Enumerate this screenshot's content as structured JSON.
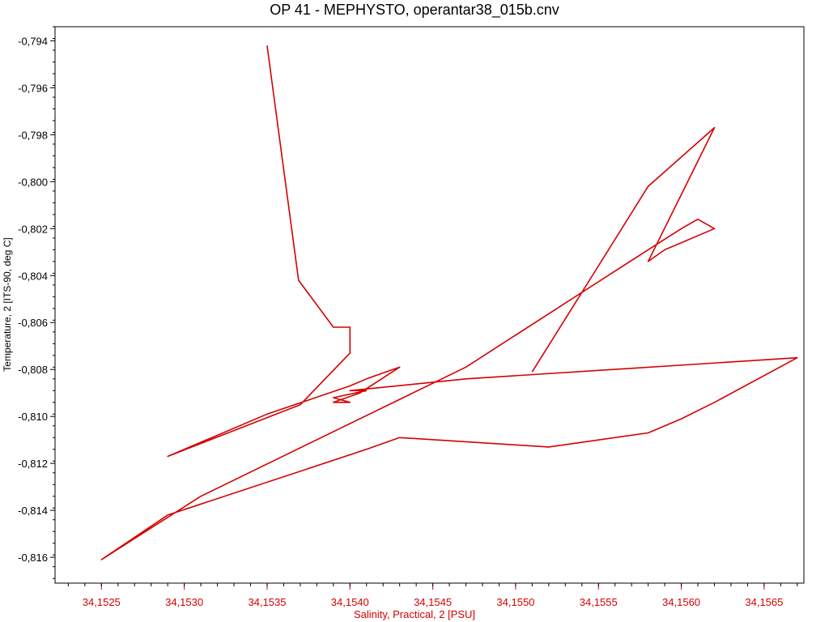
{
  "chart_data": {
    "type": "line",
    "title": "OP 41 - MEPHYSTO, operantar38_015b.cnv",
    "xlabel": "Salinity, Practical, 2 [PSU]",
    "ylabel": "Temperature, 2 [ITS-90, deg C]",
    "xlim": [
      34.15222,
      34.15674
    ],
    "ylim": [
      -0.8171,
      -0.7934
    ],
    "x_ticks": [
      34.1525,
      34.153,
      34.1535,
      34.154,
      34.1545,
      34.155,
      34.1555,
      34.156,
      34.1565
    ],
    "x_tick_labels": [
      "34,1525",
      "34,1530",
      "34,1535",
      "34,1540",
      "34,1545",
      "34,1550",
      "34,1555",
      "34,1560",
      "34,1565"
    ],
    "y_ticks": [
      -0.794,
      -0.796,
      -0.798,
      -0.8,
      -0.802,
      -0.804,
      -0.806,
      -0.808,
      -0.81,
      -0.812,
      -0.814,
      -0.816
    ],
    "y_tick_labels": [
      "-0,794",
      "-0,796",
      "-0,798",
      "-0,800",
      "-0,802",
      "-0,804",
      "-0,806",
      "-0,808",
      "-0,810",
      "-0,812",
      "-0,814",
      "-0,816"
    ],
    "grid": false,
    "series": [
      {
        "color": "#d40000",
        "points": [
          [
            34.1535,
            -0.7942
          ],
          [
            34.15369,
            -0.8042
          ],
          [
            34.1539,
            -0.8062
          ],
          [
            34.154,
            -0.8062
          ],
          [
            34.154,
            -0.8073
          ],
          [
            34.1537,
            -0.8095
          ],
          [
            34.1529,
            -0.8117
          ],
          [
            34.1535,
            -0.8099
          ],
          [
            34.154,
            -0.8087
          ],
          [
            34.1541,
            -0.8084
          ],
          [
            34.1543,
            -0.8079
          ],
          [
            34.15406,
            -0.809
          ],
          [
            34.1539,
            -0.8094
          ],
          [
            34.154,
            -0.8094
          ],
          [
            34.1539,
            -0.8092
          ],
          [
            34.1541,
            -0.8089
          ],
          [
            34.154,
            -0.8089
          ],
          [
            34.1547,
            -0.8084
          ],
          [
            34.1567,
            -0.8075
          ],
          [
            34.1562,
            -0.8094
          ],
          [
            34.156,
            -0.8101
          ],
          [
            34.1558,
            -0.8107
          ],
          [
            34.1552,
            -0.8113
          ],
          [
            34.1543,
            -0.8109
          ],
          [
            34.1541,
            -0.8114
          ],
          [
            34.1529,
            -0.8142
          ],
          [
            34.1525,
            -0.8161
          ],
          [
            34.1531,
            -0.8134
          ],
          [
            34.1547,
            -0.8079
          ],
          [
            34.1558,
            -0.8029
          ],
          [
            34.156,
            -0.802
          ],
          [
            34.1561,
            -0.8016
          ],
          [
            34.1562,
            -0.802
          ],
          [
            34.1559,
            -0.8029
          ],
          [
            34.1558,
            -0.8034
          ],
          [
            34.1562,
            -0.7977
          ],
          [
            34.1558,
            -0.8002
          ],
          [
            34.1551,
            -0.8081
          ]
        ]
      }
    ]
  }
}
